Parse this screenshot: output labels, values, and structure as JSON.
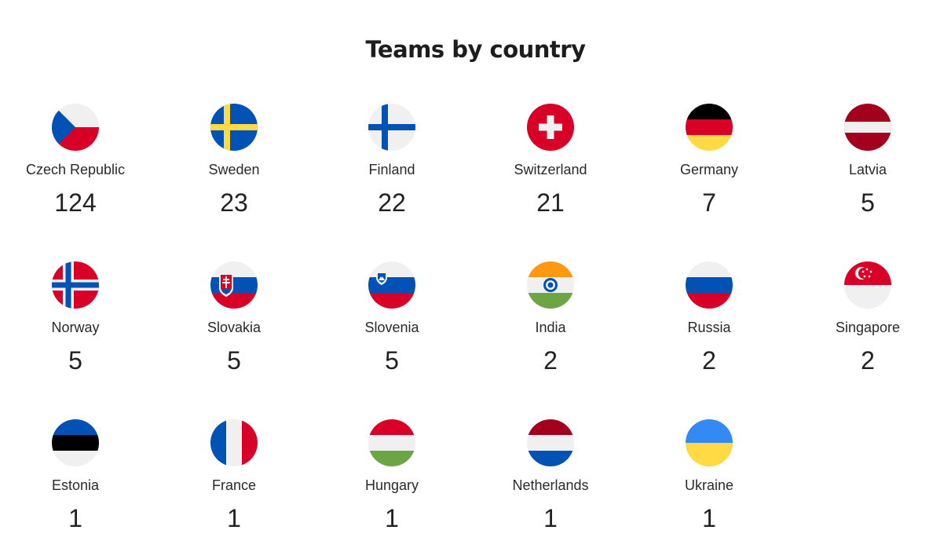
{
  "title": "Teams by country",
  "countries": [
    {
      "name": "Czech Republic",
      "count": "124",
      "flag": "czech-republic-flag-icon"
    },
    {
      "name": "Sweden",
      "count": "23",
      "flag": "sweden-flag-icon"
    },
    {
      "name": "Finland",
      "count": "22",
      "flag": "finland-flag-icon"
    },
    {
      "name": "Switzerland",
      "count": "21",
      "flag": "switzerland-flag-icon"
    },
    {
      "name": "Germany",
      "count": "7",
      "flag": "germany-flag-icon"
    },
    {
      "name": "Latvia",
      "count": "5",
      "flag": "latvia-flag-icon"
    },
    {
      "name": "Norway",
      "count": "5",
      "flag": "norway-flag-icon"
    },
    {
      "name": "Slovakia",
      "count": "5",
      "flag": "slovakia-flag-icon"
    },
    {
      "name": "Slovenia",
      "count": "5",
      "flag": "slovenia-flag-icon"
    },
    {
      "name": "India",
      "count": "2",
      "flag": "india-flag-icon"
    },
    {
      "name": "Russia",
      "count": "2",
      "flag": "russia-flag-icon"
    },
    {
      "name": "Singapore",
      "count": "2",
      "flag": "singapore-flag-icon"
    },
    {
      "name": "Estonia",
      "count": "1",
      "flag": "estonia-flag-icon"
    },
    {
      "name": "France",
      "count": "1",
      "flag": "france-flag-icon"
    },
    {
      "name": "Hungary",
      "count": "1",
      "flag": "hungary-flag-icon"
    },
    {
      "name": "Netherlands",
      "count": "1",
      "flag": "netherlands-flag-icon"
    },
    {
      "name": "Ukraine",
      "count": "1",
      "flag": "ukraine-flag-icon"
    }
  ],
  "colors": {
    "flag_white": "#f0f0f0",
    "red": "#d80027",
    "blue": "#0052b4",
    "dark_blue": "#0052b4",
    "yellow": "#ffda44",
    "black": "#000000",
    "latvia_red": "#a2001d",
    "india_orange": "#ff9811",
    "india_green": "#6da544",
    "ukraine_blue": "#338af3"
  }
}
